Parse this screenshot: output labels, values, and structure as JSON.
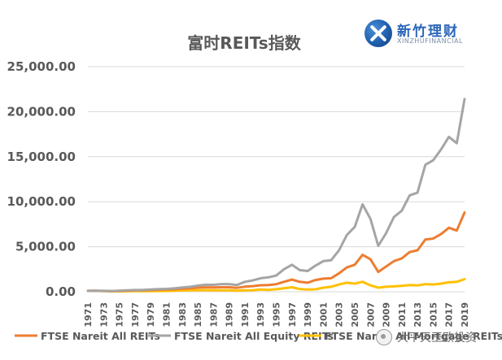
{
  "logo": {
    "name_cn": "新竹理财",
    "name_en": "XINZHUFINANCIAL"
  },
  "watermark": {
    "text": "大平天王欧投资"
  },
  "chart_data": {
    "type": "line",
    "title": "富时REITs指数",
    "xlabel": "",
    "ylabel": "",
    "ylim": [
      0,
      25000
    ],
    "yticks": [
      "0.00",
      "5,000.00",
      "10,000.00",
      "15,000.00",
      "20,000.00",
      "25,000.00"
    ],
    "grid": true,
    "legend_position": "bottom",
    "x": [
      "1971",
      "1972",
      "1973",
      "1974",
      "1975",
      "1976",
      "1977",
      "1978",
      "1979",
      "1980",
      "1981",
      "1982",
      "1983",
      "1984",
      "1985",
      "1986",
      "1987",
      "1988",
      "1989",
      "1990",
      "1991",
      "1992",
      "1993",
      "1994",
      "1995",
      "1996",
      "1997",
      "1998",
      "1999",
      "2000",
      "2001",
      "2002",
      "2003",
      "2004",
      "2005",
      "2006",
      "2007",
      "2008",
      "2009",
      "2010",
      "2011",
      "2012",
      "2013",
      "2014",
      "2015",
      "2016",
      "2017",
      "2018",
      "2019"
    ],
    "series": [
      {
        "name": "FTSE Nareit All REITs",
        "color": "#ed7d31",
        "values": [
          100,
          105,
          85,
          70,
          95,
          120,
          150,
          160,
          190,
          230,
          240,
          270,
          330,
          390,
          460,
          490,
          470,
          500,
          500,
          430,
          560,
          620,
          720,
          740,
          840,
          1100,
          1350,
          1100,
          1000,
          1300,
          1450,
          1500,
          2050,
          2700,
          3000,
          4100,
          3600,
          2200,
          2800,
          3400,
          3700,
          4400,
          4600,
          5800,
          5900,
          6400,
          7100,
          6800,
          8800
        ]
      },
      {
        "name": "FTSE Nareit All Equity REITs",
        "color": "#a5a5a5",
        "values": [
          100,
          110,
          100,
          80,
          110,
          150,
          190,
          200,
          240,
          300,
          320,
          370,
          470,
          540,
          680,
          780,
          770,
          850,
          850,
          750,
          1100,
          1250,
          1500,
          1600,
          1800,
          2500,
          3000,
          2400,
          2300,
          2900,
          3400,
          3500,
          4600,
          6300,
          7200,
          9700,
          8100,
          5100,
          6500,
          8300,
          9000,
          10700,
          11000,
          14100,
          14600,
          15800,
          17200,
          16500,
          21400
        ]
      },
      {
        "name": "FTSE Nareit All Mortgage REITs",
        "color": "#ffc000",
        "values": [
          100,
          100,
          80,
          40,
          40,
          50,
          60,
          60,
          70,
          80,
          80,
          110,
          140,
          150,
          170,
          170,
          150,
          160,
          150,
          110,
          160,
          170,
          250,
          200,
          280,
          380,
          500,
          300,
          240,
          270,
          450,
          550,
          800,
          1000,
          900,
          1100,
          700,
          450,
          550,
          600,
          650,
          750,
          700,
          850,
          800,
          900,
          1050,
          1100,
          1400
        ]
      }
    ]
  }
}
